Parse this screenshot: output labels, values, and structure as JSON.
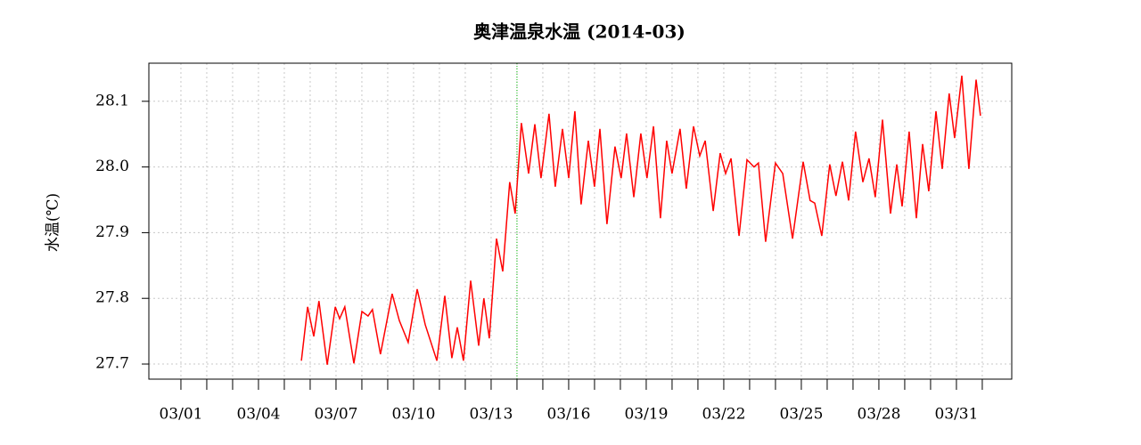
{
  "chart_data": {
    "type": "line",
    "title": "奥津温泉水温 (2014-03)",
    "y_label": "水温(℃)",
    "x": [
      5.66,
      5.9,
      6.14,
      6.34,
      6.66,
      6.97,
      7.14,
      7.34,
      7.69,
      8.0,
      8.24,
      8.41,
      8.72,
      9.17,
      9.45,
      9.79,
      10.14,
      10.45,
      10.9,
      11.21,
      11.48,
      11.69,
      11.93,
      12.21,
      12.52,
      12.72,
      12.93,
      13.21,
      13.45,
      13.72,
      13.93,
      14.17,
      14.45,
      14.69,
      14.93,
      15.24,
      15.48,
      15.76,
      16.0,
      16.24,
      16.48,
      16.76,
      17.0,
      17.21,
      17.48,
      17.79,
      18.03,
      18.24,
      18.52,
      18.79,
      19.03,
      19.28,
      19.55,
      19.79,
      20.0,
      20.31,
      20.55,
      20.83,
      21.07,
      21.28,
      21.59,
      21.86,
      22.07,
      22.28,
      22.59,
      22.9,
      23.17,
      23.34,
      23.62,
      24.0,
      24.28,
      24.66,
      25.07,
      25.34,
      25.52,
      25.79,
      26.1,
      26.34,
      26.59,
      26.83,
      27.1,
      27.38,
      27.62,
      27.86,
      28.14,
      28.45,
      28.69,
      28.9,
      29.17,
      29.45,
      29.69,
      29.93,
      30.21,
      30.45,
      30.72,
      30.93,
      31.21,
      31.48,
      31.76,
      31.93
    ],
    "series": [
      {
        "color": "#ff0000",
        "values": [
          27.705,
          27.787,
          27.742,
          27.796,
          27.699,
          27.787,
          27.769,
          27.787,
          27.701,
          27.78,
          27.773,
          27.783,
          27.715,
          27.807,
          27.766,
          27.733,
          27.814,
          27.76,
          27.705,
          27.804,
          27.709,
          27.756,
          27.705,
          27.827,
          27.728,
          27.8,
          27.739,
          27.891,
          27.841,
          27.977,
          27.929,
          28.067,
          27.99,
          28.065,
          27.983,
          28.081,
          27.97,
          28.058,
          27.983,
          28.085,
          27.943,
          28.04,
          27.97,
          28.058,
          27.913,
          28.031,
          27.983,
          28.051,
          27.954,
          28.051,
          27.983,
          28.062,
          27.922,
          28.04,
          27.99,
          28.058,
          27.967,
          28.062,
          28.017,
          28.04,
          27.933,
          28.021,
          27.99,
          28.013,
          27.895,
          28.011,
          28.0,
          28.006,
          27.886,
          28.006,
          27.99,
          27.891,
          28.008,
          27.949,
          27.945,
          27.895,
          28.004,
          27.956,
          28.008,
          27.949,
          28.054,
          27.977,
          28.013,
          27.954,
          28.072,
          27.929,
          28.004,
          27.94,
          28.054,
          27.922,
          28.035,
          27.963,
          28.085,
          27.997,
          28.112,
          28.044,
          28.139,
          27.997,
          28.133,
          28.078
        ]
      }
    ],
    "xlim": [
      -0.24,
      33.14
    ],
    "xticks": [
      {
        "value": 1,
        "label": "03/01"
      },
      {
        "value": 4,
        "label": "03/04"
      },
      {
        "value": 7,
        "label": "03/07"
      },
      {
        "value": 10,
        "label": "03/10"
      },
      {
        "value": 13,
        "label": "03/13"
      },
      {
        "value": 16,
        "label": "03/16"
      },
      {
        "value": 19,
        "label": "03/19"
      },
      {
        "value": 22,
        "label": "03/22"
      },
      {
        "value": 25,
        "label": "03/25"
      },
      {
        "value": 28,
        "label": "03/28"
      },
      {
        "value": 31,
        "label": "03/31"
      }
    ],
    "x_minor_ticks": [
      2,
      3,
      5,
      6,
      8,
      9,
      11,
      12,
      14,
      15,
      17,
      18,
      20,
      21,
      23,
      24,
      26,
      27,
      29,
      30,
      32
    ],
    "ylim": [
      27.677,
      28.158
    ],
    "yticks": [
      27.7,
      27.8,
      27.9,
      {
        "value": 28,
        "label": "28.0"
      },
      28.1
    ],
    "vline": {
      "x": 14,
      "color": "#00c000"
    },
    "grid": true
  }
}
